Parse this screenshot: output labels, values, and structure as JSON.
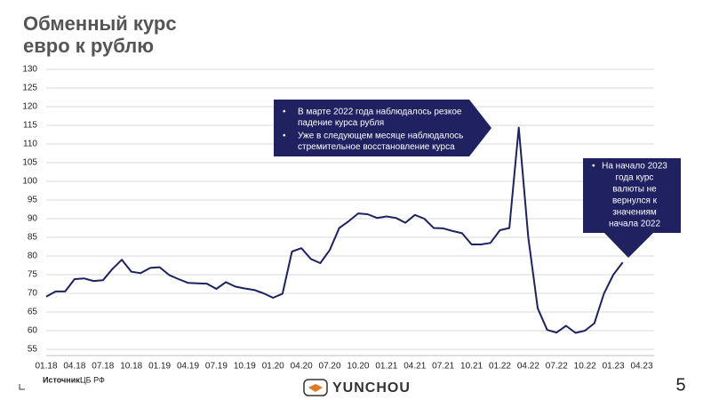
{
  "chart_data": {
    "type": "line",
    "title": [
      "Обменный курс",
      "евро к рублю"
    ],
    "categories": [
      "01.18",
      null,
      null,
      "04.18",
      null,
      null,
      "07.18",
      null,
      null,
      "10.18",
      null,
      null,
      "01.19",
      null,
      null,
      "04.19",
      null,
      null,
      "07.19",
      null,
      null,
      "10.19",
      null,
      null,
      "01.20",
      null,
      null,
      "04.20",
      null,
      null,
      "07.20",
      null,
      null,
      "10.20",
      null,
      null,
      "01.21",
      null,
      null,
      "04.21",
      null,
      null,
      "07.21",
      null,
      null,
      "10.21",
      null,
      null,
      "01.22",
      null,
      null,
      "04.22",
      null,
      null,
      "07.22",
      null,
      null,
      "10.22",
      null,
      null,
      "01.23",
      null,
      null,
      "04.23"
    ],
    "series": [
      {
        "name": "EUR/RUB",
        "color": "#1f2160",
        "values": [
          69.1,
          70.5,
          70.5,
          73.8,
          74.0,
          73.3,
          73.5,
          76.5,
          79.0,
          75.8,
          75.4,
          76.8,
          77.0,
          74.9,
          73.8,
          72.8,
          72.7,
          72.6,
          71.2,
          73.0,
          71.8,
          71.3,
          70.9,
          70.0,
          68.8,
          69.9,
          81.2,
          82.1,
          79.2,
          78.1,
          81.6,
          87.5,
          89.3,
          91.4,
          91.2,
          90.2,
          90.6,
          90.2,
          88.9,
          91.0,
          90.0,
          87.5,
          87.4,
          86.7,
          86.1,
          83.1,
          83.1,
          83.5,
          86.9,
          87.5,
          114.4,
          85.0,
          66.0,
          60.2,
          59.5,
          61.3,
          59.4,
          60.0,
          62.0,
          69.9,
          75.0,
          78.3,
          null,
          null
        ]
      }
    ],
    "ylim": [
      55,
      130
    ],
    "yticks": [
      55,
      60,
      65,
      70,
      75,
      80,
      85,
      90,
      95,
      100,
      105,
      110,
      115,
      120,
      125,
      130
    ],
    "grid": true,
    "annotations": [
      {
        "bullets": [
          [
            "В марте 2022 года наблюдалось резкое",
            "падение курса рубля"
          ],
          [
            "Уже в следующем месяце наблюдалось",
            "стремительное восстановление курса"
          ]
        ]
      },
      {
        "bullets": [
          [
            "На начало 2023",
            "года курс",
            "валюты не",
            "вернулся к",
            "значениям",
            "начала 2022"
          ]
        ]
      }
    ]
  },
  "footer": {
    "source_label": "Источник:",
    "source": "ЦБ РФ",
    "logo": "YUNCHOU",
    "page": "5"
  }
}
